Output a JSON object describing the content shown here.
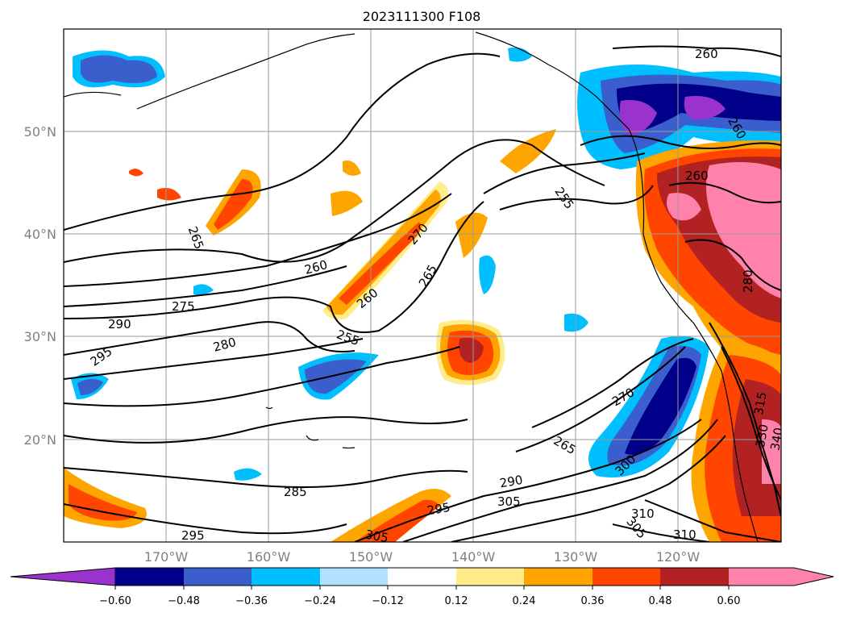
{
  "title": "2023111300 F108",
  "lat_labels": [
    "50°N",
    "40°N",
    "30°N",
    "20°N"
  ],
  "lon_labels": [
    "170°W",
    "160°W",
    "150°W",
    "140°W",
    "130°W",
    "120°W"
  ],
  "contour_labels": [
    "260",
    "260",
    "255",
    "265",
    "270",
    "260",
    "265",
    "260",
    "255",
    "275",
    "290",
    "280",
    "295",
    "270",
    "265",
    "300",
    "290",
    "295",
    "305",
    "310",
    "305",
    "310",
    "285",
    "295",
    "305",
    "280",
    "315",
    "330",
    "340",
    "260"
  ],
  "colorbar": {
    "ticks": [
      "−0.60",
      "−0.48",
      "−0.36",
      "−0.24",
      "−0.12",
      "0.12",
      "0.24",
      "0.36",
      "0.48",
      "0.60"
    ],
    "colors": [
      "#9a32cd",
      "#00008b",
      "#3a5fcd",
      "#00bfff",
      "#b0e2ff",
      "#ffffff",
      "#ffec8b",
      "#ffa500",
      "#ff4500",
      "#b22222",
      "#ff82ab"
    ]
  }
}
